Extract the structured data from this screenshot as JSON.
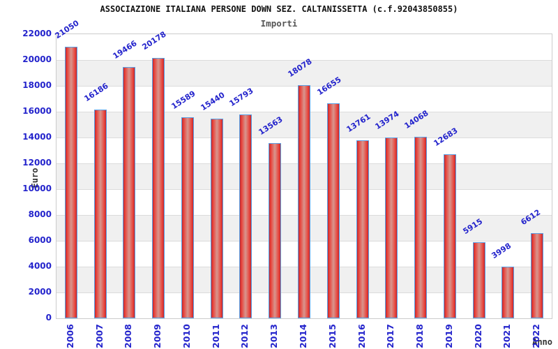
{
  "chart_data": {
    "type": "bar",
    "title": "ASSOCIAZIONE ITALIANA PERSONE DOWN SEZ. CALTANISSETTA (c.f.92043850855)",
    "subtitle": "Importi",
    "xlabel": "Anno",
    "ylabel": "Euro",
    "categories": [
      "2006",
      "2007",
      "2008",
      "2009",
      "2010",
      "2011",
      "2012",
      "2013",
      "2014",
      "2015",
      "2016",
      "2017",
      "2018",
      "2019",
      "2020",
      "2021",
      "2022"
    ],
    "values": [
      21050,
      16186,
      19466,
      20178,
      15589,
      15440,
      15793,
      13563,
      18078,
      16655,
      13761,
      13974,
      14068,
      12683,
      5915,
      3998,
      6612
    ],
    "ylim": [
      0,
      22000
    ],
    "ytick_step": 2000,
    "grid": "alternating-bands",
    "legend": "none",
    "colors": {
      "tick_and_value_text": "#2424cc",
      "title_text": "#111111",
      "subtitle_text": "#555555",
      "axis_label_text": "#333333",
      "band_gray": "#f0f0f0",
      "band_white": "#ffffff",
      "gridline": "#dcdcdc",
      "plot_border": "#cccccc",
      "bar_border": "#58a0e6",
      "bar_edge": "#c1272d",
      "bar_bright": "#e8423a",
      "bar_center": "#d8968e"
    }
  }
}
